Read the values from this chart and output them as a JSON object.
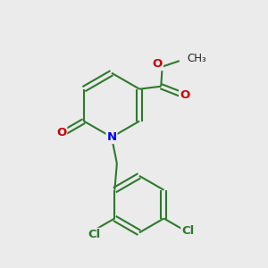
{
  "bg_color": "#ebebeb",
  "bond_color": "#2d7a2d",
  "bond_width": 1.5,
  "atom_colors": {
    "N": "#0000ee",
    "O": "#cc0000",
    "Cl": "#2d7a2d"
  },
  "fs": 9.5,
  "fs_methyl": 8.5
}
